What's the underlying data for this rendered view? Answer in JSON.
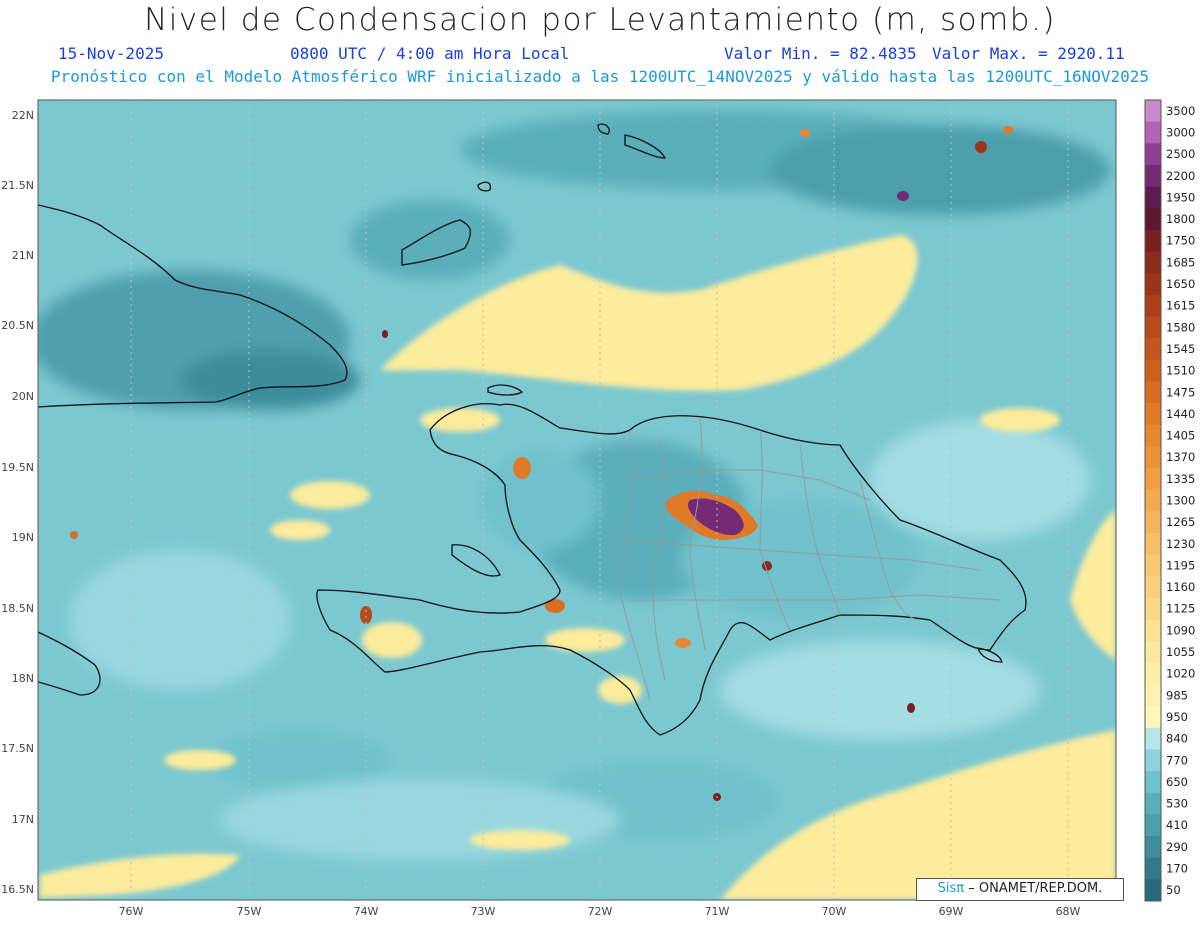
{
  "title": "Nivel de Condensacion por Levantamiento (m, somb.)",
  "header": {
    "date": "15-Nov-2025",
    "time": "0800 UTC / 4:00 am Hora Local",
    "min_label": "Valor Min. = 82.4835",
    "max_label": "Valor Max. = 2920.11",
    "forecast_info": "Pronóstico con el Modelo Atmosférico WRF inicializado a las 1200UTC_14NOV2025 y válido hasta las  1200UTC_16NOV2025"
  },
  "axes": {
    "lat_labels": [
      "22N",
      "21.5N",
      "21N",
      "20.5N",
      "20N",
      "19.5N",
      "19N",
      "18.5N",
      "18N",
      "17.5N",
      "17N",
      "16.5N"
    ],
    "lon_labels": [
      "76W",
      "75W",
      "74W",
      "73W",
      "72W",
      "71W",
      "70W",
      "69W",
      "68W"
    ]
  },
  "colorbar": {
    "levels": [
      "3500",
      "3000",
      "2500",
      "2200",
      "1950",
      "1800",
      "1750",
      "1685",
      "1650",
      "1615",
      "1580",
      "1545",
      "1510",
      "1475",
      "1440",
      "1405",
      "1370",
      "1335",
      "1300",
      "1265",
      "1230",
      "1195",
      "1160",
      "1125",
      "1090",
      "1055",
      "1020",
      "985",
      "950",
      "840",
      "770",
      "650",
      "530",
      "410",
      "290",
      "170",
      "50"
    ],
    "colors": [
      "#c98acb",
      "#b064b3",
      "#8f3f92",
      "#742a74",
      "#5c1c4e",
      "#5e1730",
      "#7a1f1f",
      "#8c2a1b",
      "#9b3419",
      "#a93e19",
      "#b64b1c",
      "#c2561d",
      "#cd621f",
      "#d86e22",
      "#e07a28",
      "#e78730",
      "#ec9338",
      "#f09f44",
      "#f3aa50",
      "#f5b55c",
      "#f7c068",
      "#f8c872",
      "#fad07d",
      "#fad987",
      "#fce292",
      "#fde99e",
      "#fdeea8",
      "#fef2b2",
      "#fef6bd",
      "#b5e6ea",
      "#8dd3db",
      "#6fc1cb",
      "#5aafbb",
      "#4b9eac",
      "#3e8c9c",
      "#327a8b",
      "#266a7b"
    ]
  },
  "credit": {
    "logo": "Sisπ",
    "text": "– ONAMET/REP.DOM."
  },
  "colors": {
    "ocean": "#78c6cf",
    "land": "#5aa9b6",
    "coast": "#111111",
    "provinces": "#9a9a9a"
  }
}
